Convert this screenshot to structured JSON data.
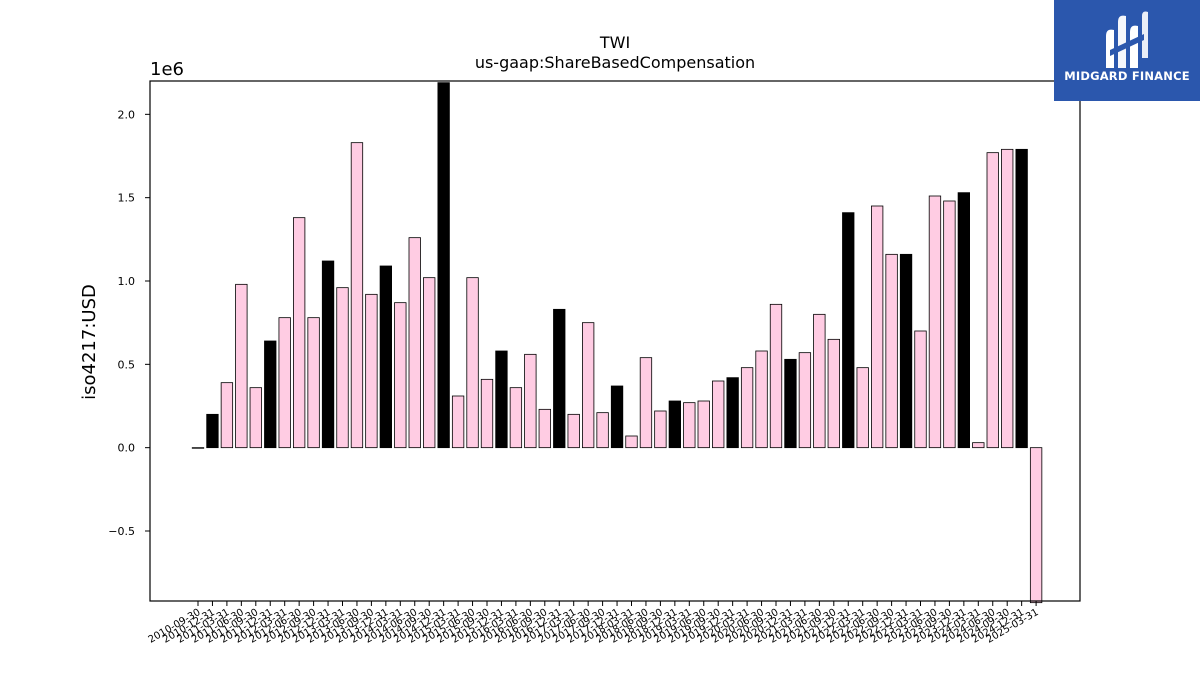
{
  "chart_data": {
    "type": "bar",
    "title": "TWI",
    "subtitle": "us-gaap:ShareBasedCompensation",
    "ylabel": "iso4217:USD",
    "xlabel": "",
    "offset_label": "1e6",
    "scale": 1000000,
    "ylim": [
      -0.92,
      2.2
    ],
    "yticks": [
      -0.5,
      0.0,
      0.5,
      1.0,
      1.5,
      2.0
    ],
    "ytick_labels": [
      "−0.5",
      "0.0",
      "0.5",
      "1.0",
      "1.5",
      "2.0"
    ],
    "grid": false,
    "colors": {
      "pink": "#ffcce3",
      "black": "#000000",
      "edge": "#000000"
    },
    "categories": [
      "2010-09-30",
      "2010-12-31",
      "2011-03-31",
      "2011-06-30",
      "2011-09-30",
      "2011-12-31",
      "2012-03-31",
      "2012-06-30",
      "2012-09-30",
      "2012-12-31",
      "2013-03-31",
      "2013-06-30",
      "2013-09-30",
      "2013-12-31",
      "2014-03-31",
      "2014-06-30",
      "2014-09-30",
      "2014-12-31",
      "2015-03-31",
      "2015-06-30",
      "2015-09-30",
      "2015-12-31",
      "2016-03-31",
      "2016-06-30",
      "2016-09-30",
      "2016-12-31",
      "2017-03-31",
      "2017-06-30",
      "2017-09-30",
      "2017-12-31",
      "2018-03-31",
      "2018-06-30",
      "2018-09-30",
      "2018-12-31",
      "2019-03-31",
      "2019-06-30",
      "2019-09-30",
      "2019-12-31",
      "2020-03-31",
      "2020-06-30",
      "2020-09-30",
      "2020-12-31",
      "2021-03-31",
      "2021-06-30",
      "2021-09-30",
      "2021-12-31",
      "2022-03-31",
      "2022-06-30",
      "2022-09-30",
      "2022-12-31",
      "2023-03-31",
      "2023-06-30",
      "2023-09-30",
      "2023-12-31",
      "2024-03-31",
      "2024-06-30",
      "2024-09-30",
      "2024-12-31",
      "2025-03-31"
    ],
    "values": [
      0.0,
      0.2,
      0.39,
      0.98,
      0.36,
      0.64,
      0.78,
      1.38,
      0.78,
      1.12,
      0.96,
      1.83,
      0.92,
      1.09,
      0.87,
      1.26,
      1.02,
      2.19,
      0.31,
      1.02,
      0.41,
      0.58,
      0.36,
      0.56,
      0.23,
      0.83,
      0.2,
      0.75,
      0.21,
      0.37,
      0.07,
      0.54,
      0.22,
      0.28,
      0.27,
      0.28,
      0.4,
      0.42,
      0.48,
      0.58,
      0.86,
      0.53,
      0.57,
      0.8,
      0.65,
      1.41,
      0.48,
      1.45,
      1.16,
      1.16,
      0.7,
      1.51,
      1.48,
      1.53,
      0.03,
      1.77,
      1.79,
      1.79,
      -0.93
    ],
    "bar_colors": [
      "black",
      "black",
      "pink",
      "pink",
      "pink",
      "black",
      "pink",
      "pink",
      "pink",
      "black",
      "pink",
      "pink",
      "pink",
      "black",
      "pink",
      "pink",
      "pink",
      "black",
      "pink",
      "pink",
      "pink",
      "black",
      "pink",
      "pink",
      "pink",
      "black",
      "pink",
      "pink",
      "pink",
      "black",
      "pink",
      "pink",
      "pink",
      "black",
      "pink",
      "pink",
      "pink",
      "black",
      "pink",
      "pink",
      "pink",
      "black",
      "pink",
      "pink",
      "pink",
      "black",
      "pink",
      "pink",
      "pink",
      "black",
      "pink",
      "pink",
      "pink",
      "black",
      "pink",
      "pink",
      "pink",
      "black",
      "pink"
    ]
  },
  "brand": {
    "name": "MIDGARD FINANCE",
    "bg_color": "#2b57ad"
  }
}
